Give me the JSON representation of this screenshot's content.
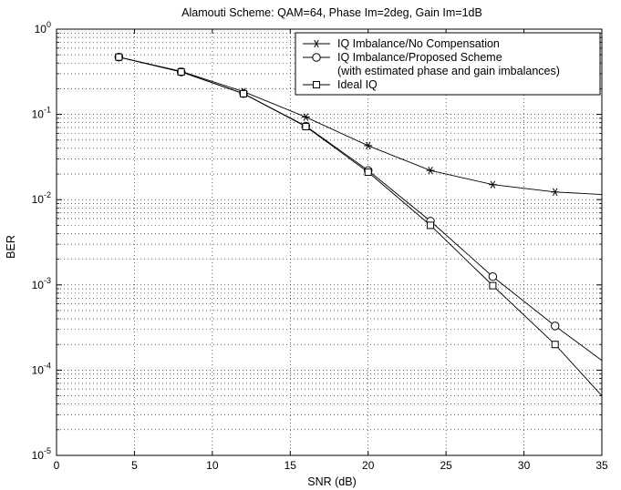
{
  "chart_data": {
    "type": "line",
    "title": "Alamouti Scheme: QAM=64, Phase Im=2deg, Gain Im=1dB",
    "xlabel": "SNR (dB)",
    "ylabel": "BER",
    "xlim": [
      0,
      35
    ],
    "ylim": [
      1e-05,
      1
    ],
    "yscale": "log",
    "grid": true,
    "legend_position": "top-right",
    "x_ticks": [
      0,
      5,
      10,
      15,
      20,
      25,
      30,
      35
    ],
    "x_tick_labels": [
      "0",
      "5",
      "10",
      "15",
      "20",
      "25",
      "30",
      "35"
    ],
    "y_ticks": [
      {
        "value": 1,
        "base": "10",
        "exp": "0"
      },
      {
        "value": 0.1,
        "base": "10",
        "exp": "-1"
      },
      {
        "value": 0.01,
        "base": "10",
        "exp": "-2"
      },
      {
        "value": 0.001,
        "base": "10",
        "exp": "-3"
      },
      {
        "value": 0.0001,
        "base": "10",
        "exp": "-4"
      },
      {
        "value": 1e-05,
        "base": "10",
        "exp": "-5"
      }
    ],
    "series": [
      {
        "name": "IQ Imbalance/No Compensation",
        "marker": "asterisk",
        "x": [
          4,
          8,
          12,
          16,
          20,
          24,
          28,
          32,
          35
        ],
        "y": [
          0.47,
          0.32,
          0.185,
          0.093,
          0.043,
          0.022,
          0.015,
          0.0123,
          0.0115
        ],
        "marker_points": 8
      },
      {
        "name": "IQ Imbalance/Proposed Scheme (with estimated phase and gain imbalances)",
        "legend_lines": [
          "IQ Imbalance/Proposed Scheme",
          "(with estimated phase and gain imbalances)"
        ],
        "marker": "circle",
        "x": [
          4,
          8,
          12,
          16,
          20,
          24,
          28,
          32,
          35
        ],
        "y": [
          0.47,
          0.315,
          0.175,
          0.073,
          0.022,
          0.0056,
          0.00125,
          0.00033,
          0.00013
        ],
        "marker_points": 8
      },
      {
        "name": "Ideal IQ",
        "marker": "square",
        "x": [
          4,
          8,
          12,
          16,
          20,
          24,
          28,
          32,
          35
        ],
        "y": [
          0.47,
          0.315,
          0.175,
          0.072,
          0.021,
          0.005,
          0.00098,
          0.0002,
          5e-05
        ],
        "marker_points": 8
      }
    ]
  }
}
